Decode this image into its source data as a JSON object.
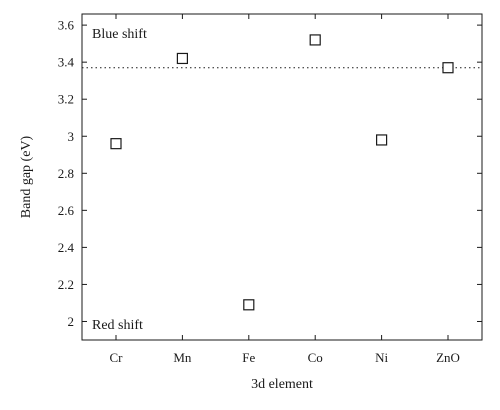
{
  "chart_data": {
    "type": "scatter",
    "categories": [
      "Cr",
      "Mn",
      "Fe",
      "Co",
      "Ni",
      "ZnO"
    ],
    "values": [
      2.96,
      3.42,
      2.09,
      3.52,
      2.98,
      3.37
    ],
    "xlabel": "3d element",
    "ylabel": "Band gap (eV)",
    "ylim": [
      1.9,
      3.66
    ],
    "yticks": [
      "2",
      "2.2",
      "2.4",
      "2.6",
      "2.8",
      "3",
      "3.2",
      "3.4",
      "3.6"
    ],
    "reference_line": {
      "value": 3.37,
      "style": "dotted"
    },
    "annotations": {
      "top": "Blue shift",
      "bottom": "Red shift"
    },
    "marker": "hollow-square",
    "grid": false,
    "colors": {
      "axis": "#1a1a1a",
      "marker": "#1a1a1a"
    }
  }
}
